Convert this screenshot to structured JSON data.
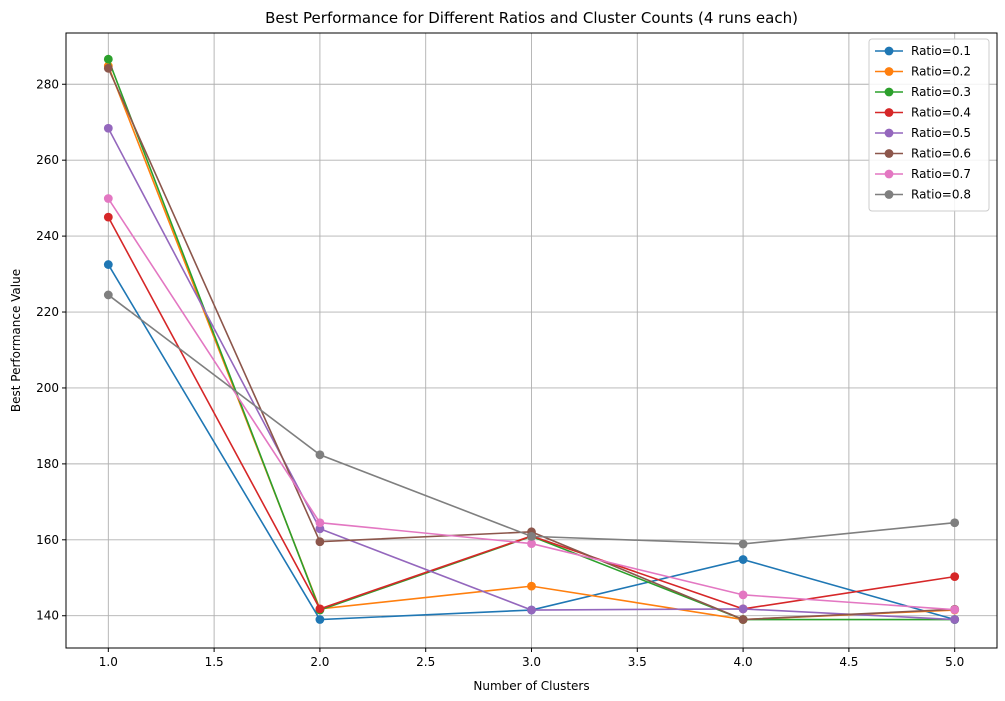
{
  "chart_data": {
    "type": "line",
    "title": "Best Performance for Different Ratios and Cluster Counts (4 runs each)",
    "xlabel": "Number of Clusters",
    "ylabel": "Best Performance Value",
    "x": [
      1.0,
      2.0,
      3.0,
      4.0,
      5.0
    ],
    "xlim": [
      0.8,
      5.2
    ],
    "ylim": [
      131.5,
      293.5
    ],
    "xticks": [
      1.0,
      1.5,
      2.0,
      2.5,
      3.0,
      3.5,
      4.0,
      4.5,
      5.0
    ],
    "xtick_labels": [
      "1.0",
      "1.5",
      "2.0",
      "2.5",
      "3.0",
      "3.5",
      "4.0",
      "4.5",
      "5.0"
    ],
    "yticks": [
      140,
      160,
      180,
      200,
      220,
      240,
      260,
      280
    ],
    "ytick_labels": [
      "140",
      "160",
      "180",
      "200",
      "220",
      "240",
      "260",
      "280"
    ],
    "grid": true,
    "legend_position": "top-right",
    "series": [
      {
        "name": "Ratio=0.1",
        "color": "#1f77b4",
        "values": [
          232.5,
          139.0,
          141.5,
          154.8,
          139.0
        ]
      },
      {
        "name": "Ratio=0.2",
        "color": "#ff7f0e",
        "values": [
          284.8,
          141.8,
          147.8,
          139.0,
          141.5
        ]
      },
      {
        "name": "Ratio=0.3",
        "color": "#2ca02c",
        "values": [
          286.6,
          141.5,
          160.9,
          139.0,
          139.0
        ]
      },
      {
        "name": "Ratio=0.4",
        "color": "#d62728",
        "values": [
          245.0,
          141.8,
          161.0,
          141.8,
          150.3
        ]
      },
      {
        "name": "Ratio=0.5",
        "color": "#9467bd",
        "values": [
          268.4,
          162.9,
          141.5,
          141.8,
          139.0
        ]
      },
      {
        "name": "Ratio=0.6",
        "color": "#8c564b",
        "values": [
          284.2,
          159.5,
          162.1,
          139.0,
          141.7
        ]
      },
      {
        "name": "Ratio=0.7",
        "color": "#e377c2",
        "values": [
          249.9,
          164.5,
          159.0,
          145.5,
          141.6
        ]
      },
      {
        "name": "Ratio=0.8",
        "color": "#7f7f7f",
        "values": [
          224.5,
          182.4,
          160.9,
          158.9,
          164.5
        ]
      }
    ]
  }
}
